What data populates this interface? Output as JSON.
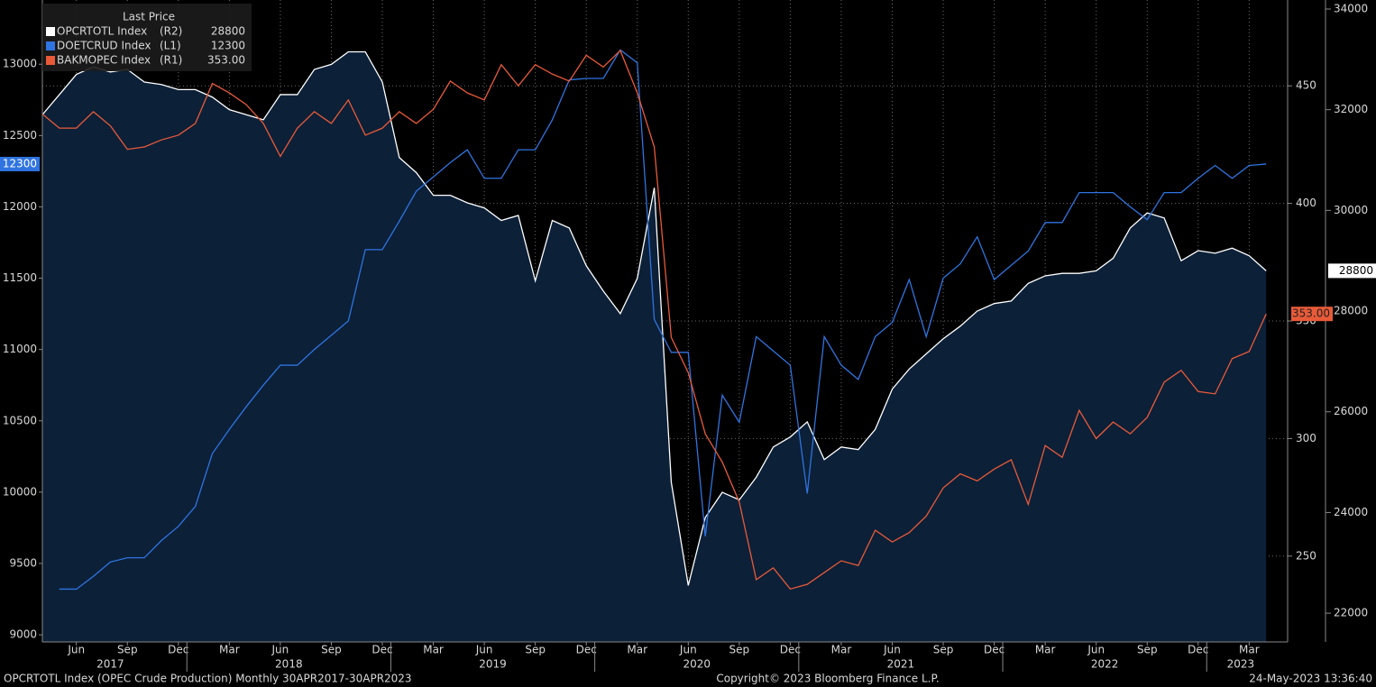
{
  "chart_data": {
    "type": "line",
    "legend_title": "Last Price",
    "footer_left": "OPCRTOTL Index (OPEC Crude Production)  Monthly 30APR2017-30APR2023",
    "footer_center": "Copyright© 2023 Bloomberg Finance L.P.",
    "footer_right": "24-May-2023 13:36:40",
    "x": [
      "2017-04",
      "2017-05",
      "2017-06",
      "2017-07",
      "2017-08",
      "2017-09",
      "2017-10",
      "2017-11",
      "2017-12",
      "2018-01",
      "2018-02",
      "2018-03",
      "2018-04",
      "2018-05",
      "2018-06",
      "2018-07",
      "2018-08",
      "2018-09",
      "2018-10",
      "2018-11",
      "2018-12",
      "2019-01",
      "2019-02",
      "2019-03",
      "2019-04",
      "2019-05",
      "2019-06",
      "2019-07",
      "2019-08",
      "2019-09",
      "2019-10",
      "2019-11",
      "2019-12",
      "2020-01",
      "2020-02",
      "2020-03",
      "2020-04",
      "2020-05",
      "2020-06",
      "2020-07",
      "2020-08",
      "2020-09",
      "2020-10",
      "2020-11",
      "2020-12",
      "2021-01",
      "2021-02",
      "2021-03",
      "2021-04",
      "2021-05",
      "2021-06",
      "2021-07",
      "2021-08",
      "2021-09",
      "2021-10",
      "2021-11",
      "2021-12",
      "2022-01",
      "2022-02",
      "2022-03",
      "2022-04",
      "2022-05",
      "2022-06",
      "2022-07",
      "2022-08",
      "2022-09",
      "2022-10",
      "2022-11",
      "2022-12",
      "2023-01",
      "2023-02",
      "2023-03",
      "2023-04"
    ],
    "xticks": [
      {
        "value": "2017-06",
        "label": "Jun"
      },
      {
        "value": "2017-09",
        "label": "Sep"
      },
      {
        "value": "2017-12",
        "label": "Dec"
      },
      {
        "value": "2018-03",
        "label": "Mar"
      },
      {
        "value": "2018-06",
        "label": "Jun"
      },
      {
        "value": "2018-09",
        "label": "Sep"
      },
      {
        "value": "2018-12",
        "label": "Dec"
      },
      {
        "value": "2019-03",
        "label": "Mar"
      },
      {
        "value": "2019-06",
        "label": "Jun"
      },
      {
        "value": "2019-09",
        "label": "Sep"
      },
      {
        "value": "2019-12",
        "label": "Dec"
      },
      {
        "value": "2020-03",
        "label": "Mar"
      },
      {
        "value": "2020-06",
        "label": "Jun"
      },
      {
        "value": "2020-09",
        "label": "Sep"
      },
      {
        "value": "2020-12",
        "label": "Dec"
      },
      {
        "value": "2021-03",
        "label": "Mar"
      },
      {
        "value": "2021-06",
        "label": "Jun"
      },
      {
        "value": "2021-09",
        "label": "Sep"
      },
      {
        "value": "2021-12",
        "label": "Dec"
      },
      {
        "value": "2022-03",
        "label": "Mar"
      },
      {
        "value": "2022-06",
        "label": "Jun"
      },
      {
        "value": "2022-09",
        "label": "Sep"
      },
      {
        "value": "2022-12",
        "label": "Dec"
      },
      {
        "value": "2023-03",
        "label": "Mar"
      }
    ],
    "years": [
      "2017",
      "2018",
      "2019",
      "2020",
      "2021",
      "2022",
      "2023"
    ],
    "ylim": [
      8950,
      13450
    ],
    "yticks": [
      9000,
      9500,
      10000,
      10500,
      11000,
      11500,
      12000,
      12500,
      13000
    ],
    "y2lim": [
      486.5,
      213.5
    ],
    "y2ticks": [
      250,
      300,
      350,
      400,
      450
    ],
    "y3lim": [
      34179,
      21429
    ],
    "y3ticks": [
      22000,
      24000,
      26000,
      28000,
      30000,
      32000,
      34000
    ],
    "grid": true,
    "series": [
      {
        "name": "OPCRTOTL Index",
        "axis_label": "(R2)",
        "axis": "y3",
        "color": "#ffffff",
        "fill": "#0c2038",
        "values": [
          31900,
          32300,
          32700,
          32850,
          32750,
          32800,
          32550,
          32500,
          32400,
          32400,
          32250,
          32000,
          31900,
          31800,
          32300,
          32300,
          32800,
          32900,
          33150,
          33150,
          32550,
          31050,
          30750,
          30300,
          30300,
          30150,
          30050,
          29800,
          29900,
          28600,
          29800,
          29650,
          28900,
          28400,
          27950,
          28650,
          30450,
          24600,
          22550,
          23900,
          24400,
          24250,
          24700,
          25300,
          25500,
          25800,
          25050,
          25300,
          25250,
          25650,
          26450,
          26850,
          27150,
          27450,
          27700,
          28000,
          28150,
          28200,
          28550,
          28700,
          28750,
          28750,
          28800,
          29050,
          29650,
          29950,
          29850,
          29000,
          29200,
          29150,
          29250,
          29100,
          28800
        ]
      },
      {
        "name": "DOETCRUD Index",
        "axis_label": "(L1)",
        "axis": "y",
        "color": "#2f74e0",
        "values": [
          null,
          9320,
          9320,
          9410,
          9510,
          9540,
          9540,
          9660,
          9760,
          9900,
          10270,
          10440,
          10600,
          10750,
          10890,
          10890,
          11000,
          11100,
          11200,
          11700,
          11700,
          11900,
          12110,
          12210,
          12310,
          12400,
          12200,
          12200,
          12400,
          12400,
          12610,
          12890,
          12900,
          12900,
          13100,
          13010,
          11210,
          10980,
          10980,
          9690,
          10680,
          10490,
          11090,
          10990,
          10890,
          9990,
          11090,
          10890,
          10790,
          11090,
          11190,
          11490,
          11090,
          11500,
          11600,
          11790,
          11490,
          11590,
          11690,
          11890,
          11890,
          12100,
          12100,
          12100,
          12000,
          11910,
          12100,
          12100,
          12200,
          12290,
          12200,
          12290,
          12300
        ]
      },
      {
        "name": "BAKMOPEC Index",
        "axis_label": "(R1)",
        "axis": "y2",
        "color": "#e85a38",
        "last_label": "353.00",
        "values": [
          438,
          432,
          432,
          439,
          433,
          423,
          424,
          427,
          429,
          434,
          451,
          447,
          442,
          434,
          420,
          432,
          439,
          434,
          444,
          429,
          432,
          439,
          434,
          440,
          452,
          447,
          444,
          459,
          450,
          459,
          455,
          452,
          463,
          458,
          465,
          447,
          424,
          343,
          328,
          302,
          290,
          273,
          240,
          245,
          236,
          238,
          243,
          248,
          246,
          261,
          256,
          260,
          267,
          279,
          285,
          282,
          287,
          291,
          272,
          297,
          292,
          312,
          300,
          307,
          302,
          309,
          324,
          329,
          320,
          319,
          334,
          337,
          353
        ]
      }
    ]
  }
}
